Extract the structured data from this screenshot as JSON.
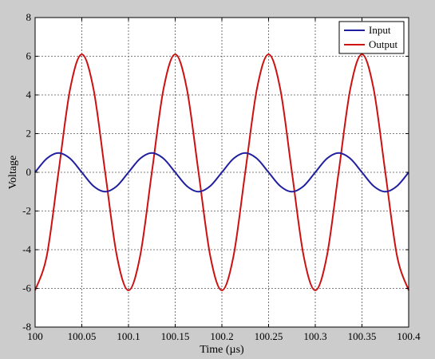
{
  "chart_data": {
    "type": "line",
    "title": "",
    "xlabel": "Time (µs)",
    "ylabel": "Voltage",
    "xlim": [
      100,
      100.4
    ],
    "ylim": [
      -8,
      8
    ],
    "x_ticks": [
      100,
      100.05,
      100.1,
      100.15,
      100.2,
      100.25,
      100.3,
      100.35,
      100.4
    ],
    "x_tick_labels": [
      "100",
      "100.05",
      "100.1",
      "100.15",
      "100.2",
      "100.25",
      "100.3",
      "100.35",
      "100.4"
    ],
    "y_ticks": [
      -8,
      -6,
      -4,
      -2,
      0,
      2,
      4,
      6,
      8
    ],
    "y_tick_labels": [
      "-8",
      "-6",
      "-4",
      "-2",
      "0",
      "2",
      "4",
      "6",
      "8"
    ],
    "grid": true,
    "legend_position": "top-right",
    "series": [
      {
        "name": "Input",
        "color": "#1f1fa0",
        "x": [
          100,
          100.0125,
          100.025,
          100.0375,
          100.05,
          100.0625,
          100.075,
          100.0875,
          100.1,
          100.1125,
          100.125,
          100.1375,
          100.15,
          100.1625,
          100.175,
          100.1875,
          100.2,
          100.2125,
          100.225,
          100.2375,
          100.25,
          100.2625,
          100.275,
          100.2875,
          100.3,
          100.3125,
          100.325,
          100.3375,
          100.35,
          100.3625,
          100.375,
          100.3875,
          100.4
        ],
        "y": [
          0,
          0.71,
          1,
          0.71,
          0,
          -0.71,
          -1,
          -0.71,
          0,
          0.71,
          1,
          0.71,
          0,
          -0.71,
          -1,
          -0.71,
          0,
          0.71,
          1,
          0.71,
          0,
          -0.71,
          -1,
          -0.71,
          0,
          0.71,
          1,
          0.71,
          0,
          -0.71,
          -1,
          -0.71,
          0
        ]
      },
      {
        "name": "Output",
        "color": "#cc1111",
        "x": [
          100,
          100.0125,
          100.025,
          100.0375,
          100.05,
          100.0625,
          100.075,
          100.0875,
          100.1,
          100.1125,
          100.125,
          100.1375,
          100.15,
          100.1625,
          100.175,
          100.1875,
          100.2,
          100.2125,
          100.225,
          100.2375,
          100.25,
          100.2625,
          100.275,
          100.2875,
          100.3,
          100.3125,
          100.325,
          100.3375,
          100.35,
          100.3625,
          100.375,
          100.3875,
          100.4
        ],
        "y": [
          -6.1,
          -4.31,
          0,
          4.31,
          6.1,
          4.31,
          0,
          -4.31,
          -6.1,
          -4.31,
          0,
          4.31,
          6.1,
          4.31,
          0,
          -4.31,
          -6.1,
          -4.31,
          0,
          4.31,
          6.1,
          4.31,
          0,
          -4.31,
          -6.1,
          -4.31,
          0,
          4.31,
          6.1,
          4.31,
          0,
          -4.31,
          -6.1
        ]
      }
    ]
  }
}
